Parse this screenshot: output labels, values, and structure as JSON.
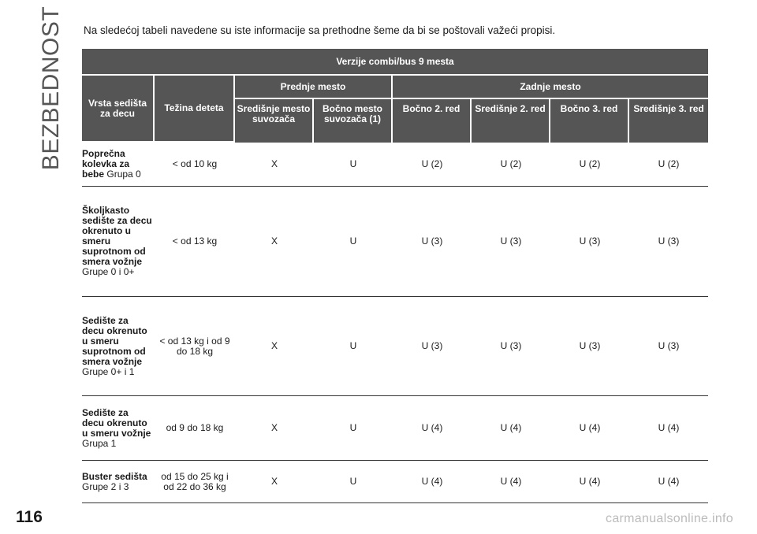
{
  "section_label": "BEZBEDNOST",
  "page_number": "116",
  "intro": "Na sledećoj tabeli navedene su iste informacije sa prethodne šeme da bi se poštovali važeći propisi.",
  "table": {
    "title": "Verzije combi/bus 9 mesta",
    "col_seat_type": "Vrsta sedišta za decu",
    "col_weight": "Težina deteta",
    "group_front": "Prednje mesto",
    "group_rear": "Zadnje mesto",
    "positions": [
      "Središnje mesto suvozača",
      "Bočno mesto suvozača (1)",
      "Bočno 2. red",
      "Središnje 2. red",
      "Bočno 3. red",
      "Središnje 3. red"
    ],
    "rows": [
      {
        "type_bold": "Poprečna kolevka za bebe",
        "type_rest": "Grupa 0",
        "weight": "< od 10 kg",
        "values": [
          "X",
          "U",
          "U (2)",
          "U (2)",
          "U (2)",
          "U (2)"
        ]
      },
      {
        "type_bold": "Školjkasto sedište za decu okrenuto u smeru suprotnom od smera vožnje",
        "type_rest": "Grupe 0 i 0+",
        "weight": "< od 13 kg",
        "values": [
          "X",
          "U",
          "U (3)",
          "U (3)",
          "U (3)",
          "U (3)"
        ]
      },
      {
        "type_bold": "Sedište za decu okrenuto u smeru suprotnom od smera vožnje",
        "type_rest": "Grupe 0+ i 1",
        "weight": "< od 13 kg i od 9 do 18 kg",
        "values": [
          "X",
          "U",
          "U (3)",
          "U (3)",
          "U (3)",
          "U (3)"
        ]
      },
      {
        "type_bold": "Sedište za decu okrenuto u smeru vožnje",
        "type_rest": "Grupa 1",
        "weight": "od 9 do 18 kg",
        "values": [
          "X",
          "U",
          "U (4)",
          "U (4)",
          "U (4)",
          "U (4)"
        ]
      },
      {
        "type_bold": "Buster sedišta",
        "type_rest": "Grupe 2 i 3",
        "weight": "od 15 do 25 kg i od 22 do 36 kg",
        "values": [
          "X",
          "U",
          "U (4)",
          "U (4)",
          "U (4)",
          "U (4)"
        ]
      }
    ]
  },
  "watermark": "carmanualsonline.info"
}
